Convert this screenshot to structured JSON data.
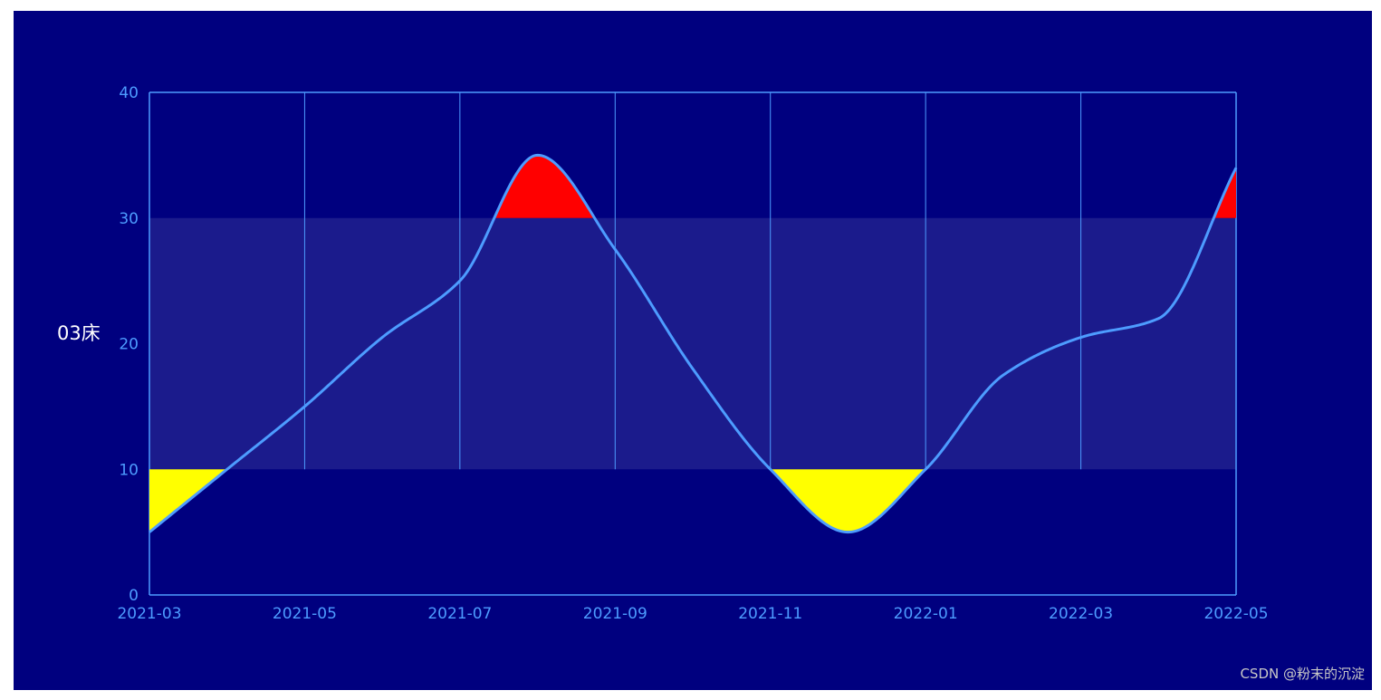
{
  "chart_data": {
    "type": "line",
    "ylabel": "03床",
    "ylim": [
      0,
      40
    ],
    "yticks": [
      0,
      10,
      20,
      30,
      40
    ],
    "xticks": [
      "2021-03",
      "2021-05",
      "2021-07",
      "2021-09",
      "2021-11",
      "2022-01",
      "2022-03",
      "2022-05"
    ],
    "xlim": [
      "2021-03",
      "2022-05"
    ],
    "normal_range": [
      10,
      30
    ],
    "series": [
      {
        "smooth": true,
        "points": [
          [
            "2021-03",
            5
          ],
          [
            "2021-04",
            10
          ],
          [
            "2021-05",
            15
          ],
          [
            "2021-06",
            20.5
          ],
          [
            "2021-07",
            25
          ],
          [
            "2021-08",
            35
          ],
          [
            "2021-09",
            27.5
          ],
          [
            "2021-10",
            18
          ],
          [
            "2021-11",
            10
          ],
          [
            "2021-12",
            5
          ],
          [
            "2022-01",
            10
          ],
          [
            "2022-02",
            17.5
          ],
          [
            "2022-03",
            20.5
          ],
          [
            "2022-04",
            22
          ],
          [
            "2022-05",
            34
          ]
        ]
      }
    ],
    "grid": true,
    "colors": {
      "background": "#00007f",
      "band": "#1b1b8c",
      "line": "#4d9cff",
      "axis": "#4d9cff",
      "tick_label": "#4d9cff",
      "above_fill": "#ff0000",
      "below_fill": "#ffff00"
    }
  },
  "watermark": "CSDN @粉末的沉淀"
}
